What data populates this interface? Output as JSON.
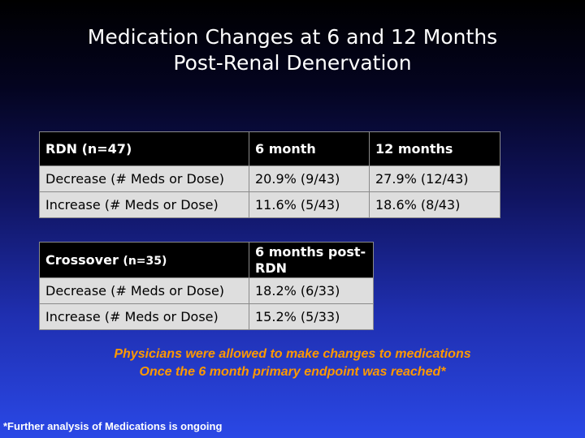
{
  "title": {
    "line1": "Medication Changes at 6 and 12 Months",
    "line2": "Post-Renal Denervation"
  },
  "rdn_table": {
    "headers": [
      "RDN (n=47)",
      "6 month",
      "12 months"
    ],
    "rows": [
      [
        "Decrease (# Meds or Dose)",
        "20.9% (9/43)",
        "27.9% (12/43)"
      ],
      [
        "Increase (# Meds or Dose)",
        "11.6% (5/43)",
        "18.6% (8/43)"
      ]
    ]
  },
  "crossover_table": {
    "header_label": "Crossover",
    "header_n": "(n=35)",
    "header_col2": "6 months post-RDN",
    "rows": [
      [
        "Decrease (# Meds or Dose)",
        "18.2% (6/33)"
      ],
      [
        "Increase (# Meds or Dose)",
        "15.2% (5/33)"
      ]
    ]
  },
  "note": {
    "line1": "Physicians were allowed to make changes to medications",
    "line2": "Once the 6 month primary endpoint was reached*"
  },
  "footnote": "*Further analysis of Medications is ongoing",
  "colors": {
    "note_text": "#ff9900",
    "header_bg": "#000000",
    "cell_bg": "#dedede"
  }
}
